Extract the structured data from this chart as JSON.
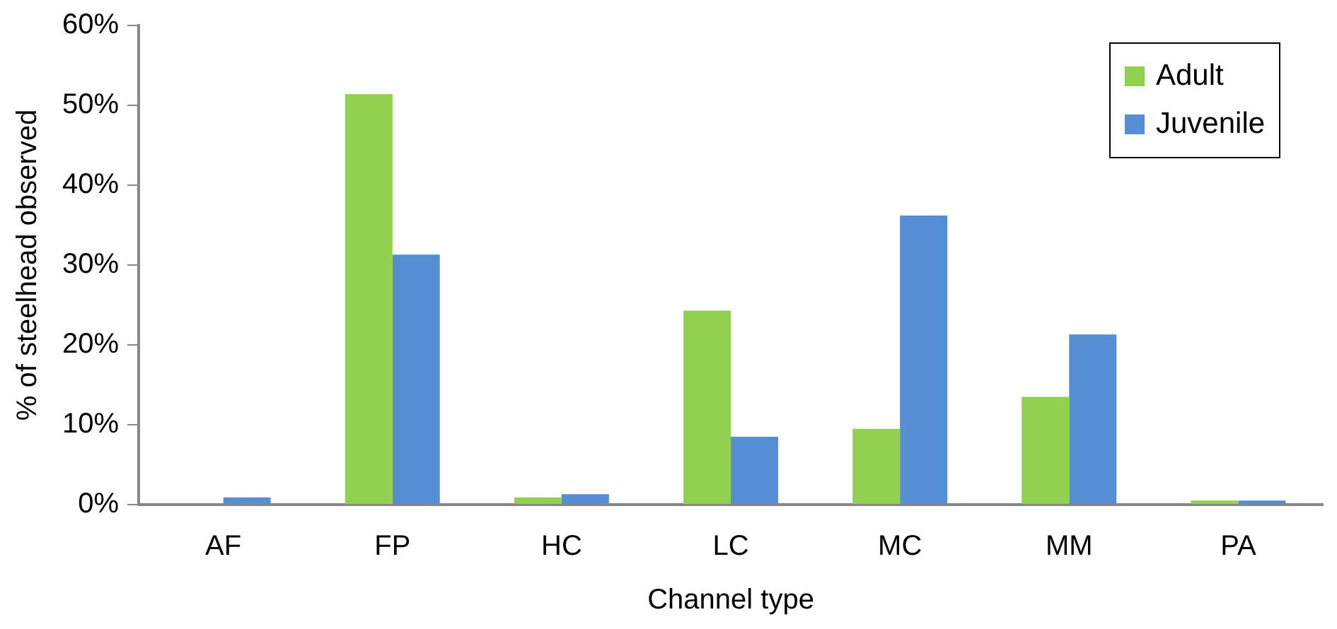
{
  "chart_data": {
    "type": "bar",
    "xlabel": "Channel type",
    "ylabel": "% of steelhead observed",
    "categories": [
      "AF",
      "FP",
      "HC",
      "LC",
      "MC",
      "MM",
      "PA"
    ],
    "series": [
      {
        "name": "Adult",
        "color": "#92d050",
        "values": [
          0,
          51.4,
          0.9,
          24.3,
          9.5,
          13.5,
          0.5
        ]
      },
      {
        "name": "Juvenile",
        "color": "#558ed5",
        "values": [
          0.9,
          31.3,
          1.3,
          8.5,
          36.2,
          21.3,
          0.5
        ]
      }
    ],
    "ylim": [
      0,
      60
    ],
    "yticks": [
      {
        "value": 0,
        "label": "0%"
      },
      {
        "value": 10,
        "label": "10%"
      },
      {
        "value": 20,
        "label": "20%"
      },
      {
        "value": 30,
        "label": "30%"
      },
      {
        "value": 40,
        "label": "40%"
      },
      {
        "value": 50,
        "label": "50%"
      },
      {
        "value": 60,
        "label": "60%"
      }
    ],
    "grid": false,
    "legend": "top right"
  }
}
